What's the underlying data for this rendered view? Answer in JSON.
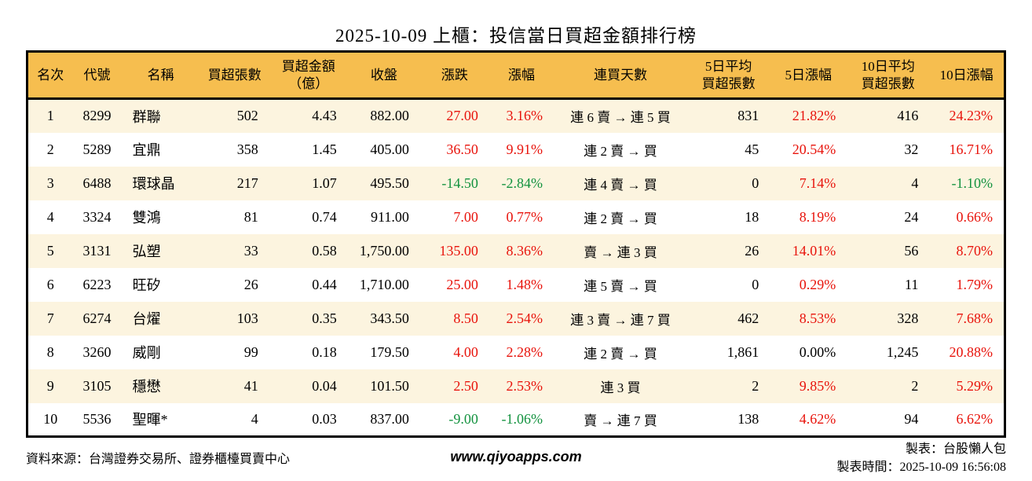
{
  "title": "2025-10-09 上櫃：投信當日買超金額排行榜",
  "colors": {
    "header_bg": "#f6be4f",
    "row_alt_bg": "#fcf4df",
    "row_bg": "#ffffff",
    "up_red": "#e8130b",
    "down_green": "#12923e",
    "border": "#000000"
  },
  "chart_data": {
    "type": "table",
    "title": "2025-10-09 上櫃：投信當日買超金額排行榜",
    "columns": [
      {
        "key": "rank",
        "label": "名次"
      },
      {
        "key": "code",
        "label": "代號"
      },
      {
        "key": "name",
        "label": "名稱"
      },
      {
        "key": "net-buy-volume",
        "label": "買超張數"
      },
      {
        "key": "net-buy-amount",
        "label": "買超金額\n（億）"
      },
      {
        "key": "close",
        "label": "收盤"
      },
      {
        "key": "change",
        "label": "漲跌"
      },
      {
        "key": "change-pct",
        "label": "漲幅"
      },
      {
        "key": "buy-streak",
        "label": "連買天數"
      },
      {
        "key": "avg5-volume",
        "label": "5日平均\n買超張數"
      },
      {
        "key": "pct5",
        "label": "5日漲幅"
      },
      {
        "key": "avg10-volume",
        "label": "10日平均\n買超張數"
      },
      {
        "key": "pct10",
        "label": "10日漲幅"
      }
    ],
    "rows": [
      {
        "cells": [
          {
            "v": "1"
          },
          {
            "v": "8299"
          },
          {
            "v": "群聯"
          },
          {
            "v": "502"
          },
          {
            "v": "4.43"
          },
          {
            "v": "882.00"
          },
          {
            "v": "27.00",
            "c": "up"
          },
          {
            "v": "3.16%",
            "c": "up"
          },
          {
            "v": "連 6 賣 → 連 5 買"
          },
          {
            "v": "831"
          },
          {
            "v": "21.82%",
            "c": "up"
          },
          {
            "v": "416"
          },
          {
            "v": "24.23%",
            "c": "up"
          }
        ]
      },
      {
        "cells": [
          {
            "v": "2"
          },
          {
            "v": "5289"
          },
          {
            "v": "宜鼎"
          },
          {
            "v": "358"
          },
          {
            "v": "1.45"
          },
          {
            "v": "405.00"
          },
          {
            "v": "36.50",
            "c": "up"
          },
          {
            "v": "9.91%",
            "c": "up"
          },
          {
            "v": "連 2 賣 → 買"
          },
          {
            "v": "45"
          },
          {
            "v": "20.54%",
            "c": "up"
          },
          {
            "v": "32"
          },
          {
            "v": "16.71%",
            "c": "up"
          }
        ]
      },
      {
        "cells": [
          {
            "v": "3"
          },
          {
            "v": "6488"
          },
          {
            "v": "環球晶"
          },
          {
            "v": "217"
          },
          {
            "v": "1.07"
          },
          {
            "v": "495.50"
          },
          {
            "v": "-14.50",
            "c": "down"
          },
          {
            "v": "-2.84%",
            "c": "down"
          },
          {
            "v": "連 4 賣 → 買"
          },
          {
            "v": "0"
          },
          {
            "v": "7.14%",
            "c": "up"
          },
          {
            "v": "4"
          },
          {
            "v": "-1.10%",
            "c": "down"
          }
        ]
      },
      {
        "cells": [
          {
            "v": "4"
          },
          {
            "v": "3324"
          },
          {
            "v": "雙鴻"
          },
          {
            "v": "81"
          },
          {
            "v": "0.74"
          },
          {
            "v": "911.00"
          },
          {
            "v": "7.00",
            "c": "up"
          },
          {
            "v": "0.77%",
            "c": "up"
          },
          {
            "v": "連 2 賣 → 買"
          },
          {
            "v": "18"
          },
          {
            "v": "8.19%",
            "c": "up"
          },
          {
            "v": "24"
          },
          {
            "v": "0.66%",
            "c": "up"
          }
        ]
      },
      {
        "cells": [
          {
            "v": "5"
          },
          {
            "v": "3131"
          },
          {
            "v": "弘塑"
          },
          {
            "v": "33"
          },
          {
            "v": "0.58"
          },
          {
            "v": "1,750.00"
          },
          {
            "v": "135.00",
            "c": "up"
          },
          {
            "v": "8.36%",
            "c": "up"
          },
          {
            "v": "賣 → 連 3 買"
          },
          {
            "v": "26"
          },
          {
            "v": "14.01%",
            "c": "up"
          },
          {
            "v": "56"
          },
          {
            "v": "8.70%",
            "c": "up"
          }
        ]
      },
      {
        "cells": [
          {
            "v": "6"
          },
          {
            "v": "6223"
          },
          {
            "v": "旺矽"
          },
          {
            "v": "26"
          },
          {
            "v": "0.44"
          },
          {
            "v": "1,710.00"
          },
          {
            "v": "25.00",
            "c": "up"
          },
          {
            "v": "1.48%",
            "c": "up"
          },
          {
            "v": "連 5 賣 → 買"
          },
          {
            "v": "0"
          },
          {
            "v": "0.29%",
            "c": "up"
          },
          {
            "v": "11"
          },
          {
            "v": "1.79%",
            "c": "up"
          }
        ]
      },
      {
        "cells": [
          {
            "v": "7"
          },
          {
            "v": "6274"
          },
          {
            "v": "台燿"
          },
          {
            "v": "103"
          },
          {
            "v": "0.35"
          },
          {
            "v": "343.50"
          },
          {
            "v": "8.50",
            "c": "up"
          },
          {
            "v": "2.54%",
            "c": "up"
          },
          {
            "v": "連 3 賣 → 連 7 買"
          },
          {
            "v": "462"
          },
          {
            "v": "8.53%",
            "c": "up"
          },
          {
            "v": "328"
          },
          {
            "v": "7.68%",
            "c": "up"
          }
        ]
      },
      {
        "cells": [
          {
            "v": "8"
          },
          {
            "v": "3260"
          },
          {
            "v": "威剛"
          },
          {
            "v": "99"
          },
          {
            "v": "0.18"
          },
          {
            "v": "179.50"
          },
          {
            "v": "4.00",
            "c": "up"
          },
          {
            "v": "2.28%",
            "c": "up"
          },
          {
            "v": "連 2 賣 → 買"
          },
          {
            "v": "1,861"
          },
          {
            "v": "0.00%"
          },
          {
            "v": "1,245"
          },
          {
            "v": "20.88%",
            "c": "up"
          }
        ]
      },
      {
        "cells": [
          {
            "v": "9"
          },
          {
            "v": "3105"
          },
          {
            "v": "穩懋"
          },
          {
            "v": "41"
          },
          {
            "v": "0.04"
          },
          {
            "v": "101.50"
          },
          {
            "v": "2.50",
            "c": "up"
          },
          {
            "v": "2.53%",
            "c": "up"
          },
          {
            "v": "連 3 買"
          },
          {
            "v": "2"
          },
          {
            "v": "9.85%",
            "c": "up"
          },
          {
            "v": "2"
          },
          {
            "v": "5.29%",
            "c": "up"
          }
        ]
      },
      {
        "cells": [
          {
            "v": "10"
          },
          {
            "v": "5536"
          },
          {
            "v": "聖暉*"
          },
          {
            "v": "4"
          },
          {
            "v": "0.03"
          },
          {
            "v": "837.00"
          },
          {
            "v": "-9.00",
            "c": "down"
          },
          {
            "v": "-1.06%",
            "c": "down"
          },
          {
            "v": "賣 → 連 7 買"
          },
          {
            "v": "138"
          },
          {
            "v": "4.62%",
            "c": "up"
          },
          {
            "v": "94"
          },
          {
            "v": "6.62%",
            "c": "up"
          }
        ]
      }
    ]
  },
  "footer": {
    "source": "資料來源：台灣證券交易所、證券櫃檯買賣中心",
    "website": "www.qiyoapps.com",
    "maker": "製表：台股懶人包",
    "made_time": "製表時間：2025-10-09 16:56:08"
  }
}
